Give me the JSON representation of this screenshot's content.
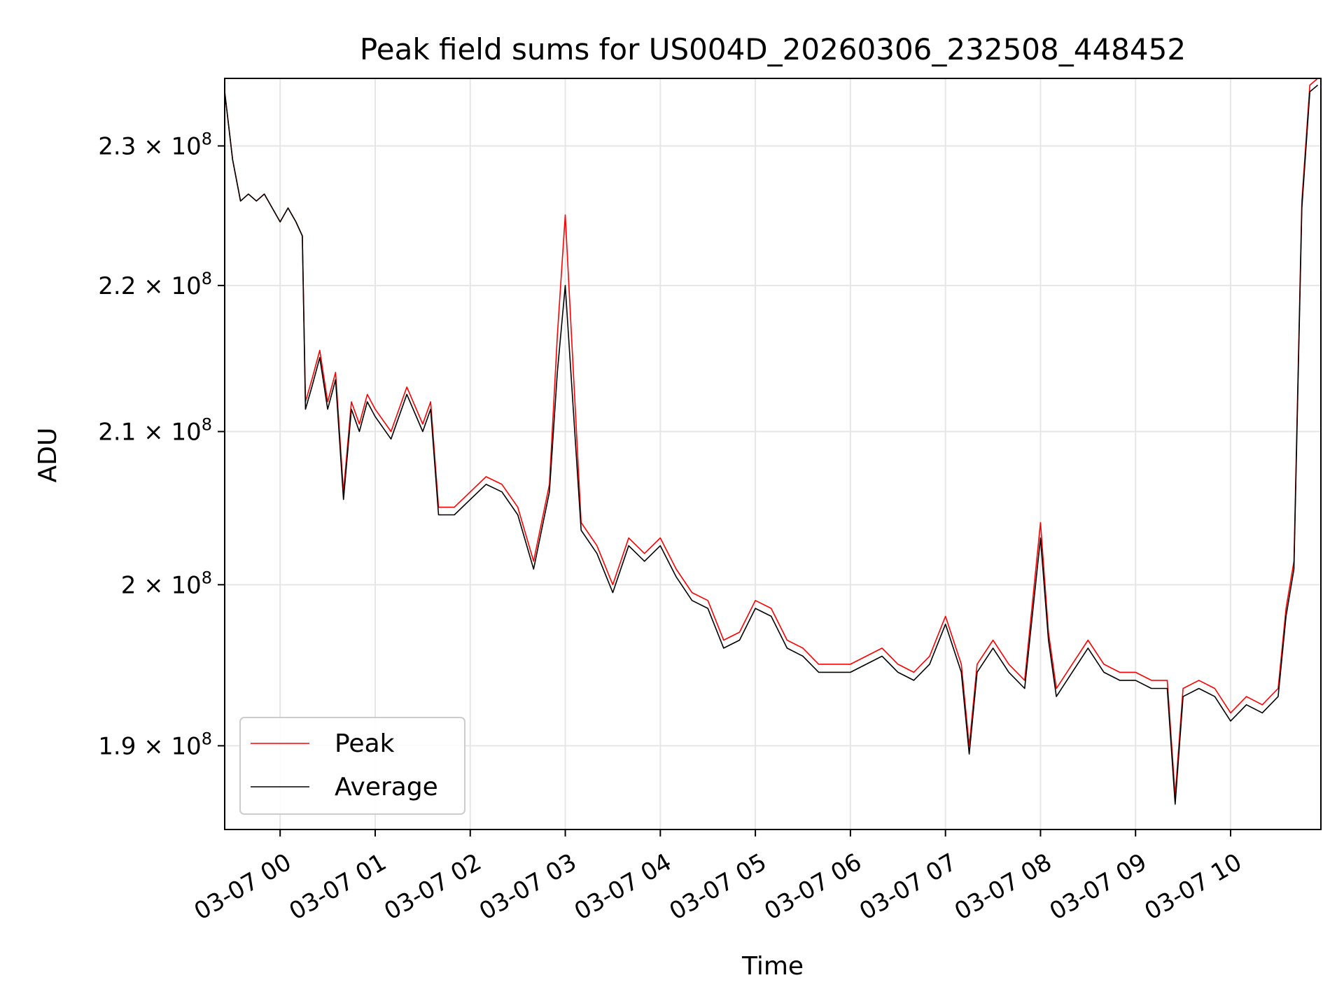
{
  "chart_data": {
    "type": "line",
    "title": "Peak field sums for US004D_20260306_232508_448452",
    "xlabel": "Time",
    "ylabel": "ADU",
    "y_scale": "log",
    "ylim": [
      185000000,
      235000000
    ],
    "xlim": [
      "2026-03-06 23:25",
      "2026-03-07 10:57"
    ],
    "grid": true,
    "legend_position": "lower-left",
    "x_tick_labels": [
      "03-07 00",
      "03-07 01",
      "03-07 02",
      "03-07 03",
      "03-07 04",
      "03-07 05",
      "03-07 06",
      "03-07 07",
      "03-07 08",
      "03-07 09",
      "03-07 10"
    ],
    "y_ticks": [
      {
        "value": 190000000,
        "mantissa": "1.9",
        "exponent": "8"
      },
      {
        "value": 200000000,
        "mantissa": "2",
        "exponent": "8"
      },
      {
        "value": 210000000,
        "mantissa": "2.1",
        "exponent": "8"
      },
      {
        "value": 220000000,
        "mantissa": "2.2",
        "exponent": "8"
      },
      {
        "value": 230000000,
        "mantissa": "2.3",
        "exponent": "8"
      }
    ],
    "times_sample": [
      "2026-03-06 23:25",
      "2026-03-06 23:30",
      "2026-03-06 23:35",
      "2026-03-06 23:40",
      "2026-03-06 23:45",
      "2026-03-06 23:50",
      "2026-03-06 23:55",
      "2026-03-07 00:00",
      "2026-03-07 00:05",
      "2026-03-07 00:10",
      "2026-03-07 00:14",
      "2026-03-07 00:16",
      "2026-03-07 00:20",
      "2026-03-07 00:25",
      "2026-03-07 00:30",
      "2026-03-07 00:35",
      "2026-03-07 00:40",
      "2026-03-07 00:45",
      "2026-03-07 00:50",
      "2026-03-07 00:55",
      "2026-03-07 01:00",
      "2026-03-07 01:10",
      "2026-03-07 01:20",
      "2026-03-07 01:30",
      "2026-03-07 01:35",
      "2026-03-07 01:40",
      "2026-03-07 01:50",
      "2026-03-07 02:00",
      "2026-03-07 02:10",
      "2026-03-07 02:20",
      "2026-03-07 02:30",
      "2026-03-07 02:40",
      "2026-03-07 02:50",
      "2026-03-07 02:55",
      "2026-03-07 03:00",
      "2026-03-07 03:10",
      "2026-03-07 03:20",
      "2026-03-07 03:30",
      "2026-03-07 03:40",
      "2026-03-07 03:50",
      "2026-03-07 04:00",
      "2026-03-07 04:10",
      "2026-03-07 04:20",
      "2026-03-07 04:30",
      "2026-03-07 04:40",
      "2026-03-07 04:50",
      "2026-03-07 05:00",
      "2026-03-07 05:10",
      "2026-03-07 05:20",
      "2026-03-07 05:30",
      "2026-03-07 05:40",
      "2026-03-07 05:50",
      "2026-03-07 06:00",
      "2026-03-07 06:10",
      "2026-03-07 06:20",
      "2026-03-07 06:30",
      "2026-03-07 06:40",
      "2026-03-07 06:50",
      "2026-03-07 07:00",
      "2026-03-07 07:10",
      "2026-03-07 07:15",
      "2026-03-07 07:20",
      "2026-03-07 07:30",
      "2026-03-07 07:40",
      "2026-03-07 07:50",
      "2026-03-07 08:00",
      "2026-03-07 08:05",
      "2026-03-07 08:10",
      "2026-03-07 08:20",
      "2026-03-07 08:30",
      "2026-03-07 08:40",
      "2026-03-07 08:50",
      "2026-03-07 09:00",
      "2026-03-07 09:10",
      "2026-03-07 09:20",
      "2026-03-07 09:25",
      "2026-03-07 09:30",
      "2026-03-07 09:40",
      "2026-03-07 09:50",
      "2026-03-07 10:00",
      "2026-03-07 10:10",
      "2026-03-07 10:20",
      "2026-03-07 10:30",
      "2026-03-07 10:35",
      "2026-03-07 10:40",
      "2026-03-07 10:45",
      "2026-03-07 10:50",
      "2026-03-07 10:55"
    ],
    "series": [
      {
        "name": "Peak",
        "color": "#ff0000",
        "values": [
          234000000,
          229000000,
          226000000,
          226500000,
          226000000,
          226500000,
          225500000,
          224500000,
          225500000,
          224500000,
          223500000,
          212000000,
          213500000,
          215500000,
          212000000,
          214000000,
          206000000,
          212000000,
          210500000,
          212500000,
          211500000,
          210000000,
          213000000,
          210500000,
          212000000,
          205000000,
          205000000,
          206000000,
          207000000,
          206500000,
          205000000,
          201500000,
          206500000,
          216500000,
          225000000,
          204000000,
          202500000,
          200000000,
          203000000,
          202000000,
          203000000,
          201000000,
          199500000,
          199000000,
          196500000,
          197000000,
          199000000,
          198500000,
          196500000,
          196000000,
          195000000,
          195000000,
          195000000,
          195500000,
          196000000,
          195000000,
          194500000,
          195500000,
          198000000,
          195000000,
          190000000,
          195000000,
          196500000,
          195000000,
          194000000,
          204000000,
          197000000,
          193500000,
          195000000,
          196500000,
          195000000,
          194500000,
          194500000,
          194000000,
          194000000,
          187000000,
          193500000,
          194000000,
          193500000,
          192000000,
          193000000,
          192500000,
          193500000,
          198500000,
          201500000,
          226000000,
          234500000,
          235000000
        ]
      },
      {
        "name": "Average",
        "color": "#000000",
        "values": [
          234000000,
          229000000,
          226000000,
          226500000,
          226000000,
          226500000,
          225500000,
          224500000,
          225500000,
          224500000,
          223500000,
          211500000,
          213000000,
          215000000,
          211500000,
          213500000,
          205500000,
          211500000,
          210000000,
          212000000,
          211000000,
          209500000,
          212500000,
          210000000,
          211500000,
          204500000,
          204500000,
          205500000,
          206500000,
          206000000,
          204500000,
          201000000,
          206000000,
          214000000,
          220000000,
          203500000,
          202000000,
          199500000,
          202500000,
          201500000,
          202500000,
          200500000,
          199000000,
          198500000,
          196000000,
          196500000,
          198500000,
          198000000,
          196000000,
          195500000,
          194500000,
          194500000,
          194500000,
          195000000,
          195500000,
          194500000,
          194000000,
          195000000,
          197500000,
          194500000,
          189500000,
          194500000,
          196000000,
          194500000,
          193500000,
          203000000,
          196500000,
          193000000,
          194500000,
          196000000,
          194500000,
          194000000,
          194000000,
          193500000,
          193500000,
          186500000,
          193000000,
          193500000,
          193000000,
          191500000,
          192500000,
          192000000,
          193000000,
          198000000,
          201000000,
          225500000,
          234000000,
          234500000
        ]
      }
    ]
  }
}
